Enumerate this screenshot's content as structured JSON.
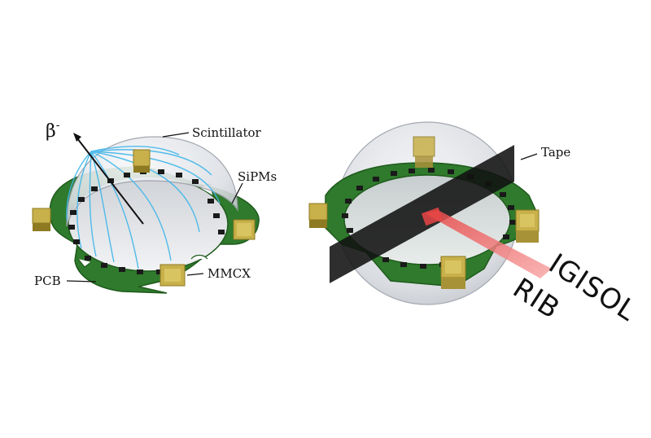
{
  "left_detector": {
    "labels": {
      "beta": "β",
      "beta_sup": "-",
      "scintillator": "Scintillator",
      "sipms": "SiPMs",
      "pcb": "PCB",
      "mmcx": "MMCX"
    }
  },
  "right_detector": {
    "labels": {
      "tape": "Tape",
      "beam_source": "IGISOL",
      "beam": "RIB"
    }
  },
  "colors": {
    "pcb_green": "#2f7a2c",
    "pcb_dark": "#1f5a1d",
    "connector_gold": "#c8b04a",
    "connector_dark": "#8e7a22",
    "sipm_black": "#1a1a1a",
    "scintillator_glass": "#d8dbe0",
    "light_track_blue": "#3fb6ea",
    "tape_black": "#111111",
    "beam_red": "#f06a6a"
  }
}
